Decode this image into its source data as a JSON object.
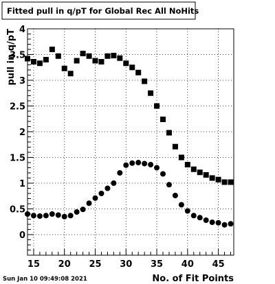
{
  "chart_data": {
    "type": "scatter",
    "title": "Fitted pull in q/pT for Global Rec All NoHits",
    "xlabel": "No. of Fit Points",
    "ylabel": "pull in q/pT",
    "footer": "Sun Jan 10 09:49:08 2021",
    "xlim": [
      14,
      47.5
    ],
    "ylim": [
      -0.4,
      4.0
    ],
    "grid": true,
    "x_ticks": [
      {
        "v": 15,
        "label": "15"
      },
      {
        "v": 20,
        "label": "20"
      },
      {
        "v": 25,
        "label": "25"
      },
      {
        "v": 30,
        "label": "30"
      },
      {
        "v": 35,
        "label": "35"
      },
      {
        "v": 40,
        "label": "40"
      },
      {
        "v": 45,
        "label": "45"
      }
    ],
    "y_ticks": [
      {
        "v": 0,
        "label": "0"
      },
      {
        "v": 0.5,
        "label": "0.5"
      },
      {
        "v": 1,
        "label": "1"
      },
      {
        "v": 1.5,
        "label": "1.5"
      },
      {
        "v": 2,
        "label": "2"
      },
      {
        "v": 2.5,
        "label": "2.5"
      },
      {
        "v": 3,
        "label": "3"
      },
      {
        "v": 3.5,
        "label": "3.5"
      },
      {
        "v": 4,
        "label": "4"
      }
    ],
    "x": [
      14,
      15,
      16,
      17,
      18,
      19,
      20,
      21,
      22,
      23,
      24,
      25,
      26,
      27,
      28,
      29,
      30,
      31,
      32,
      33,
      34,
      35,
      36,
      37,
      38,
      39,
      40,
      41,
      42,
      43,
      44,
      45,
      46,
      47
    ],
    "series": [
      {
        "marker": "square",
        "values": [
          3.42,
          3.36,
          3.33,
          3.4,
          3.6,
          3.47,
          3.23,
          3.13,
          3.38,
          3.52,
          3.47,
          3.38,
          3.36,
          3.47,
          3.48,
          3.43,
          3.33,
          3.25,
          3.15,
          2.98,
          2.75,
          2.5,
          2.24,
          1.98,
          1.71,
          1.5,
          1.36,
          1.27,
          1.21,
          1.16,
          1.1,
          1.07,
          1.02,
          1.02
        ]
      },
      {
        "marker": "circle",
        "values": [
          0.4,
          0.37,
          0.36,
          0.37,
          0.4,
          0.38,
          0.35,
          0.37,
          0.44,
          0.49,
          0.61,
          0.71,
          0.8,
          0.9,
          1.0,
          1.2,
          1.35,
          1.39,
          1.4,
          1.38,
          1.36,
          1.3,
          1.18,
          0.97,
          0.76,
          0.58,
          0.46,
          0.37,
          0.33,
          0.28,
          0.24,
          0.23,
          0.19,
          0.21
        ]
      }
    ]
  }
}
